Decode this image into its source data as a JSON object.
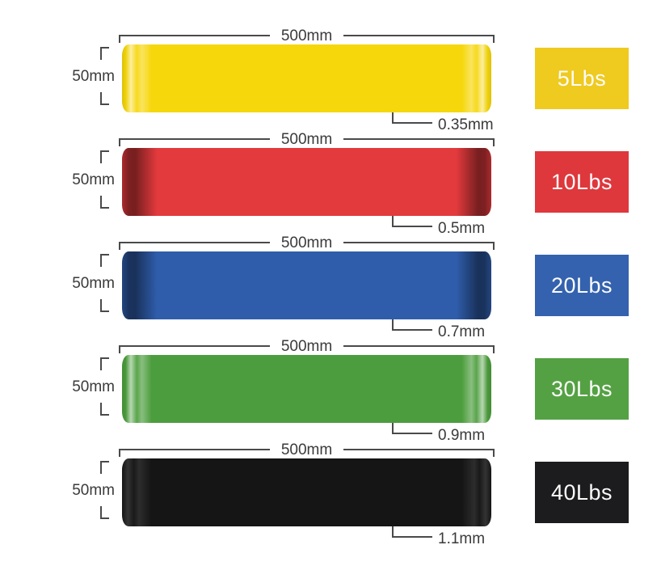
{
  "page": {
    "background_color": "#ffffff",
    "dimension_line_color": "#4a4a4a",
    "label_text_color": "#3a3a3a",
    "badge_text_color": "#fbfbfb"
  },
  "rows": [
    {
      "color_name": "yellow",
      "width_label": "500mm",
      "height_label": "50mm",
      "thickness_label": "0.35mm",
      "weight_label": "5Lbs",
      "band_color": "#F6D70B",
      "badge_color": "#EFCA1F"
    },
    {
      "color_name": "red",
      "width_label": "500mm",
      "height_label": "50mm",
      "thickness_label": "0.5mm",
      "weight_label": "10Lbs",
      "band_color": "#E33A3D",
      "badge_color": "#DE383C"
    },
    {
      "color_name": "blue",
      "width_label": "500mm",
      "height_label": "50mm",
      "thickness_label": "0.7mm",
      "weight_label": "20Lbs",
      "band_color": "#2F5DAB",
      "badge_color": "#3462AE"
    },
    {
      "color_name": "green",
      "width_label": "500mm",
      "height_label": "50mm",
      "thickness_label": "0.9mm",
      "weight_label": "30Lbs",
      "band_color": "#4C9D3D",
      "badge_color": "#54A143"
    },
    {
      "color_name": "black",
      "width_label": "500mm",
      "height_label": "50mm",
      "thickness_label": "1.1mm",
      "weight_label": "40Lbs",
      "band_color": "#151515",
      "badge_color": "#1C1C1E"
    }
  ]
}
